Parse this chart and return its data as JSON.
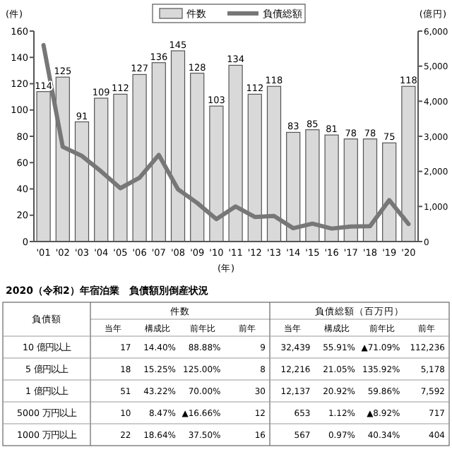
{
  "chart_data": [
    {
      "type": "bar",
      "categories": [
        "'01",
        "'02",
        "'03",
        "'04",
        "'05",
        "'06",
        "'07",
        "'08",
        "'09",
        "'10",
        "'11",
        "'12",
        "'13",
        "'14",
        "'15",
        "'16",
        "'17",
        "'18",
        "'19",
        "'20"
      ],
      "series": [
        {
          "name": "件数",
          "type": "bar",
          "color": "#d9d9d9",
          "values": [
            114,
            125,
            91,
            109,
            112,
            127,
            136,
            145,
            128,
            103,
            134,
            112,
            118,
            83,
            85,
            81,
            78,
            78,
            75,
            118
          ],
          "value_labels": [
            "114",
            "125",
            "91",
            "109",
            "112",
            "127",
            "136",
            "145",
            "128",
            "103",
            "134",
            "112",
            "118",
            "83",
            "85",
            "81",
            "78",
            "78",
            "75",
            "118"
          ]
        },
        {
          "name": "負債総額",
          "type": "line",
          "axis": "y2",
          "color": "#777777",
          "values": [
            5600,
            2700,
            2440,
            2000,
            1520,
            1820,
            2470,
            1490,
            1100,
            640,
            1000,
            700,
            730,
            380,
            510,
            370,
            430,
            440,
            1180,
            500
          ]
        }
      ],
      "ylabel": "(件)",
      "y2label": "(億円)",
      "xlabel": "(年)",
      "ylim": [
        0,
        160
      ],
      "yticks": [
        0,
        20,
        40,
        60,
        80,
        100,
        120,
        140,
        160
      ],
      "y2lim": [
        0,
        6000
      ],
      "y2ticks": [
        0,
        {
          "value": 1000,
          "label": "1,000"
        },
        {
          "value": 2000,
          "label": "2,000"
        },
        {
          "value": 3000,
          "label": "3,000"
        },
        {
          "value": 4000,
          "label": "4,000"
        },
        {
          "value": 5000,
          "label": "5,000"
        },
        {
          "value": 6000,
          "label": "6,000"
        }
      ],
      "legend": "top",
      "grid": false
    },
    {
      "type": "other",
      "title": "2020（令和2）年宿泊業　負債額別倒産状況",
      "categories": [
        "当年",
        "構成比",
        "前年比",
        "前年",
        "当年",
        "構成比",
        "前年比",
        "前年"
      ],
      "annotations": [
        "負債額",
        "件数",
        "負債総額（百万円）",
        "10 億円以上",
        "17",
        "14.40%",
        "88.88%",
        "9",
        "32,439",
        "55.91%",
        "▲71.09%",
        "112,236",
        "5 億円以上",
        "18",
        "15.25%",
        "125.00%",
        "8",
        "12,216",
        "21.05%",
        "135.92%",
        "5,178",
        "1 億円以上",
        "51",
        "43.22%",
        "70.00%",
        "30",
        "12,137",
        "20.92%",
        "59.86%",
        "7,592",
        "5000 万円以上",
        "10",
        "8.47%",
        "▲16.66%",
        "12",
        "653",
        "1.12%",
        "▲8.92%",
        "717",
        "1000 万円以上",
        "22",
        "18.64%",
        "37.50%",
        "16",
        "567",
        "0.97%",
        "40.34%",
        "404"
      ]
    }
  ]
}
